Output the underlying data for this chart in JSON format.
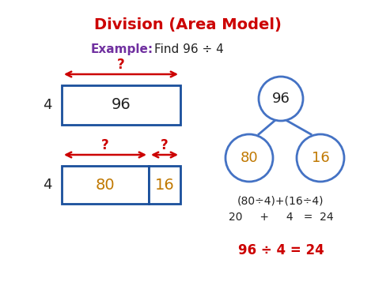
{
  "title": "Division (Area Model)",
  "title_color": "#cc0000",
  "example_label": "Example:",
  "example_label_color": "#7030a0",
  "example_text": "Find 96 ÷ 4",
  "example_text_color": "#222222",
  "bg_color": "#ffffff",
  "box_edge_color": "#1a4f9c",
  "orange_color": "#c07800",
  "red_color": "#cc0000",
  "blue_tree_color": "#4472c4",
  "black_color": "#222222",
  "formula_text": "(80÷4)+(16÷4)",
  "sum_text": "20     +     4   =  24",
  "result_text": "96 ÷ 4 = 24",
  "result_color": "#cc0000"
}
